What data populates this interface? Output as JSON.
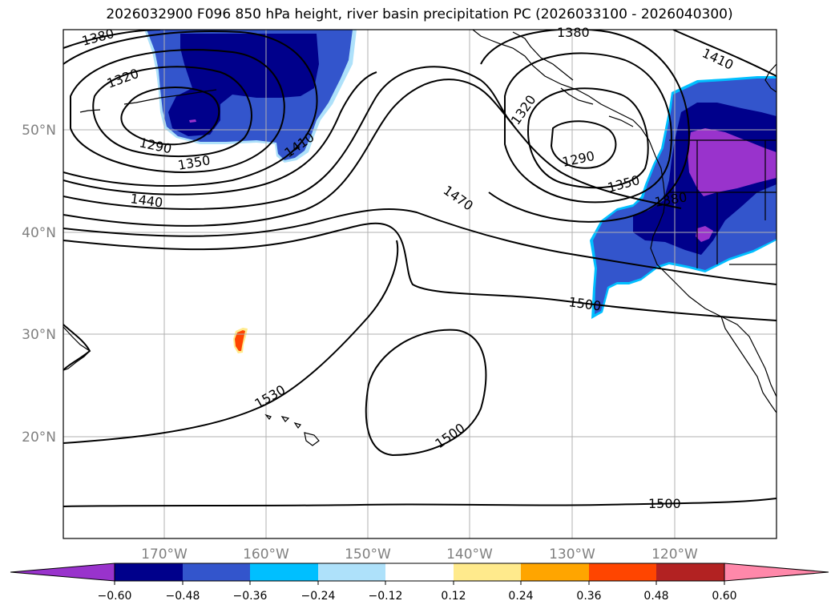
{
  "title": "2026032900 F096 850 hPa height, river basin precipitation PC (2026033100 - 2026040300)",
  "latitude_labels": [
    "50°N",
    "40°N",
    "30°N",
    "20°N"
  ],
  "longitude_labels": [
    "170°W",
    "160°W",
    "150°W",
    "140°W",
    "130°W",
    "120°W"
  ],
  "contour_labels": [
    "1380",
    "1320",
    "1290",
    "1350",
    "1410",
    "1440",
    "1470",
    "1380",
    "1320",
    "1290",
    "1350",
    "1410",
    "1380",
    "1500",
    "1530",
    "1500",
    "1500"
  ],
  "colorbar": {
    "tick_labels": [
      "−0.60",
      "−0.48",
      "−0.36",
      "−0.24",
      "−0.12",
      "0.12",
      "0.24",
      "0.36",
      "0.48",
      "0.60"
    ],
    "colors": [
      "#9933cc",
      "#00008b",
      "#3355cc",
      "#00bfff",
      "#aee1fa",
      "#ffffff",
      "#ffea8c",
      "#ffa500",
      "#ff4500",
      "#b22222",
      "#ff88aa"
    ]
  },
  "colors": {
    "contour": "#000000",
    "coastline": "#000000",
    "grid": "#b0b0b0",
    "axis_label": "#808080"
  }
}
